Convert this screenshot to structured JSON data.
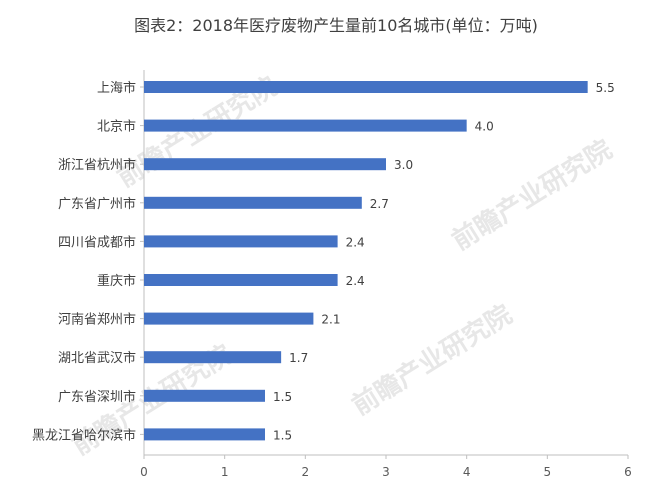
{
  "chart_data": {
    "type": "bar",
    "orientation": "horizontal",
    "title": "图表2：2018年医疗废物产生量前10名城市(单位：万吨)",
    "categories": [
      "上海市",
      "北京市",
      "浙江省杭州市",
      "广东省广州市",
      "四川省成都市",
      "重庆市",
      "河南省郑州市",
      "湖北省武汉市",
      "广东省深圳市",
      "黑龙江省哈尔滨市"
    ],
    "values": [
      5.5,
      4.0,
      3.0,
      2.7,
      2.4,
      2.4,
      2.1,
      1.7,
      1.5,
      1.5
    ],
    "value_labels": [
      "5.5",
      "4.0",
      "3.0",
      "2.7",
      "2.4",
      "2.4",
      "2.1",
      "1.7",
      "1.5",
      "1.5"
    ],
    "xlim": [
      0,
      6
    ],
    "x_ticks": [
      "0",
      "1",
      "2",
      "3",
      "4",
      "5",
      "6"
    ],
    "grid": false,
    "legend": "none",
    "bar_color": "#4472C4"
  },
  "watermark": "前瞻产业研究院"
}
